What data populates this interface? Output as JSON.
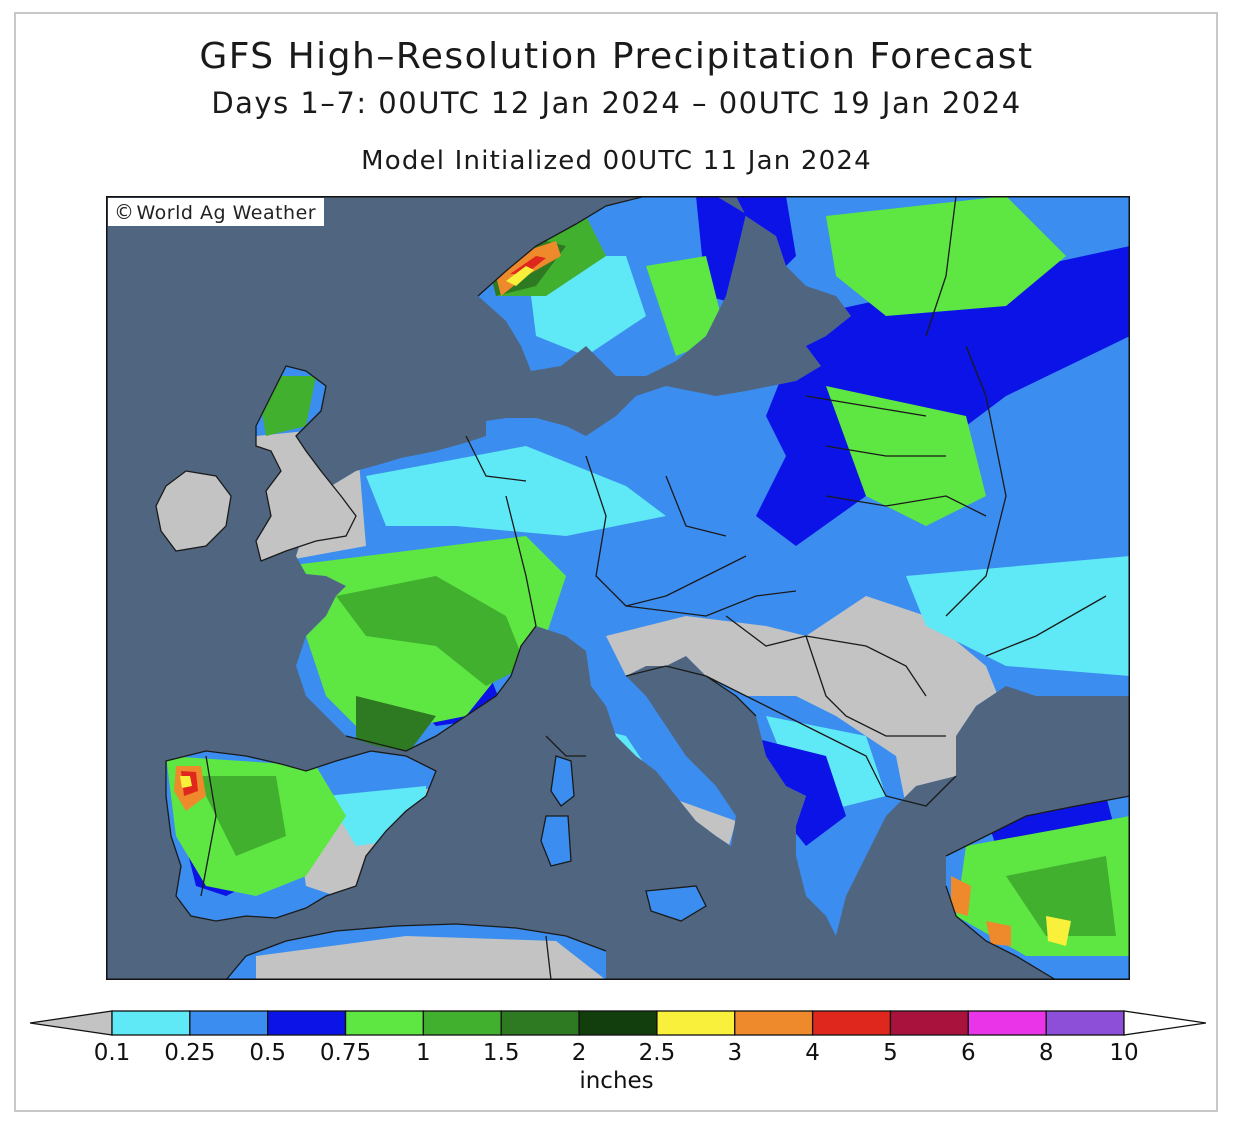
{
  "title": "GFS High–Resolution Precipitation Forecast",
  "subtitle": "Days 1–7: 00UTC 12 Jan 2024 – 00UTC 19 Jan 2024",
  "init": "Model Initialized 00UTC 11 Jan 2024",
  "credit": {
    "symbol": "©",
    "text": "World Ag Weather"
  },
  "colors": {
    "sea": "#4f6580",
    "land_dry": "#c3c3c3",
    "border": "#1a1a1a"
  },
  "legend": {
    "units": "inches",
    "ticks": [
      "0.1",
      "0.25",
      "0.5",
      "0.75",
      "1",
      "1.5",
      "2",
      "2.5",
      "3",
      "4",
      "5",
      "6",
      "8",
      "10"
    ],
    "below_color": "#c3c3c3",
    "above_color": "#ffffff",
    "bins": [
      {
        "from": "0.1",
        "to": "0.25",
        "color": "#5fe8f5"
      },
      {
        "from": "0.25",
        "to": "0.5",
        "color": "#3b8ef0"
      },
      {
        "from": "0.5",
        "to": "0.75",
        "color": "#0b13e6"
      },
      {
        "from": "0.75",
        "to": "1",
        "color": "#5ee642"
      },
      {
        "from": "1",
        "to": "1.5",
        "color": "#42b02f"
      },
      {
        "from": "1.5",
        "to": "2",
        "color": "#2e7a22"
      },
      {
        "from": "2",
        "to": "2.5",
        "color": "#123d0c"
      },
      {
        "from": "2.5",
        "to": "3",
        "color": "#f8f03a"
      },
      {
        "from": "3",
        "to": "4",
        "color": "#ee8a2c"
      },
      {
        "from": "4",
        "to": "5",
        "color": "#e0271e"
      },
      {
        "from": "5",
        "to": "6",
        "color": "#a8123c"
      },
      {
        "from": "6",
        "to": "8",
        "color": "#ea34e8"
      },
      {
        "from": "8",
        "to": "10",
        "color": "#8d4fd8"
      }
    ]
  }
}
